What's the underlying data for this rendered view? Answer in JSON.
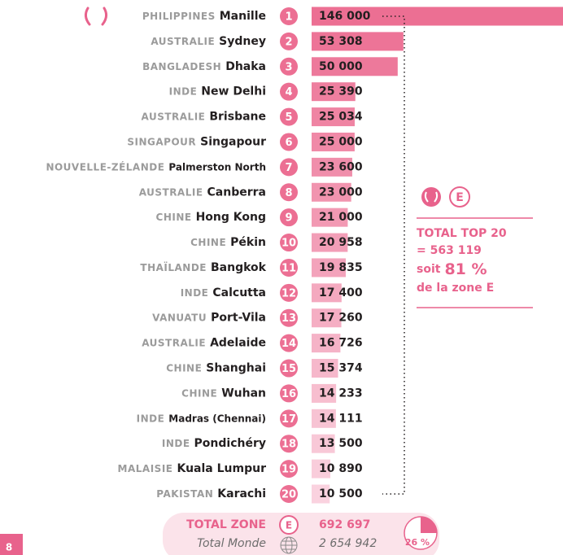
{
  "chart_data": {
    "type": "bar",
    "orientation": "horizontal",
    "countries": [
      "PHILIPPINES",
      "AUSTRALIE",
      "BANGLADESH",
      "INDE",
      "AUSTRALIE",
      "SINGAPOUR",
      "NOUVELLE-ZÉLANDE",
      "AUSTRALIE",
      "CHINE",
      "CHINE",
      "THAÏLANDE",
      "INDE",
      "VANUATU",
      "AUSTRALIE",
      "CHINE",
      "CHINE",
      "INDE",
      "INDE",
      "MALAISIE",
      "PAKISTAN"
    ],
    "categories": [
      "Manille",
      "Sydney",
      "Dhaka",
      "New Delhi",
      "Brisbane",
      "Singapour",
      "Palmerston North",
      "Canberra",
      "Hong Kong",
      "Pékin",
      "Bangkok",
      "Calcutta",
      "Port-Vila",
      "Adelaide",
      "Shanghai",
      "Wuhan",
      "Madras (Chennai)",
      "Pondichéry",
      "Kuala Lumpur",
      "Karachi"
    ],
    "ranks": [
      1,
      2,
      3,
      4,
      5,
      6,
      7,
      8,
      9,
      10,
      11,
      12,
      13,
      14,
      15,
      16,
      17,
      18,
      19,
      20
    ],
    "values": [
      146000,
      53308,
      50000,
      25390,
      25034,
      25000,
      23600,
      23000,
      21000,
      20958,
      19835,
      17400,
      17260,
      16726,
      15374,
      14233,
      14111,
      13500,
      10890,
      10500
    ],
    "value_labels": [
      "146 000",
      "53 308",
      "50 000",
      "25 390",
      "25 034",
      "25 000",
      "23 600",
      "23 000",
      "21 000",
      "20 958",
      "19 835",
      "17 400",
      "17 260",
      "16 726",
      "15 374",
      "14 233",
      "14 111",
      "13 500",
      "10 890",
      "10 500"
    ],
    "color": "#ec6f93",
    "color_end": "#fce4ec"
  },
  "sidebar": {
    "zone": "E",
    "title": "TOTAL TOP 20",
    "total": "= 563 119",
    "soit": "soit",
    "share": "81 %",
    "note": "de la zone E"
  },
  "footer": {
    "total_label": "TOTAL ZONE",
    "zone": "E",
    "total": "692 697",
    "world_label": "Total Monde",
    "world": "2 654 942",
    "share": "26 %",
    "page": "8"
  }
}
